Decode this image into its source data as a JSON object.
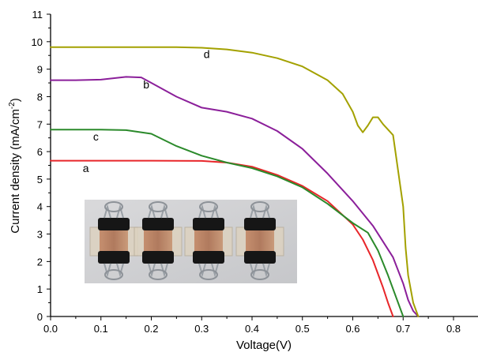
{
  "chart_data": {
    "type": "line",
    "title": "",
    "xlabel": "Voltage(V)",
    "ylabel": "Current density (mA/cm",
    "ylabel_sup": "-2",
    "ylabel_close": ")",
    "xlim": [
      0.0,
      0.85
    ],
    "ylim": [
      0,
      11
    ],
    "xticks": [
      "0.0",
      "0.1",
      "0.2",
      "0.3",
      "0.4",
      "0.5",
      "0.6",
      "0.7",
      "0.8"
    ],
    "yticks": [
      "0",
      "1",
      "2",
      "3",
      "4",
      "5",
      "6",
      "7",
      "8",
      "9",
      "10",
      "11"
    ],
    "grid": false,
    "series": [
      {
        "name": "a",
        "color": "#e8262a",
        "x": [
          0.0,
          0.1,
          0.2,
          0.3,
          0.35,
          0.4,
          0.45,
          0.5,
          0.55,
          0.6,
          0.62,
          0.64,
          0.66,
          0.67,
          0.68
        ],
        "y": [
          5.67,
          5.67,
          5.67,
          5.66,
          5.6,
          5.45,
          5.15,
          4.75,
          4.2,
          3.35,
          2.8,
          2.05,
          1.05,
          0.5,
          0.0
        ]
      },
      {
        "name": "b",
        "color": "#8b1f9a",
        "x": [
          0.0,
          0.05,
          0.1,
          0.15,
          0.18,
          0.2,
          0.25,
          0.3,
          0.35,
          0.4,
          0.45,
          0.5,
          0.55,
          0.6,
          0.64,
          0.68,
          0.7,
          0.71,
          0.72,
          0.73
        ],
        "y": [
          8.6,
          8.6,
          8.62,
          8.72,
          8.7,
          8.5,
          8.0,
          7.6,
          7.45,
          7.2,
          6.75,
          6.1,
          5.2,
          4.2,
          3.3,
          2.15,
          1.2,
          0.6,
          0.2,
          0.0
        ]
      },
      {
        "name": "c",
        "color": "#2b8a2b",
        "x": [
          0.0,
          0.1,
          0.15,
          0.2,
          0.25,
          0.3,
          0.35,
          0.4,
          0.45,
          0.5,
          0.55,
          0.6,
          0.63,
          0.65,
          0.67,
          0.69,
          0.7
        ],
        "y": [
          6.8,
          6.8,
          6.78,
          6.65,
          6.2,
          5.85,
          5.6,
          5.4,
          5.1,
          4.7,
          4.1,
          3.4,
          3.05,
          2.4,
          1.5,
          0.5,
          0.0
        ]
      },
      {
        "name": "d",
        "color": "#a3a100",
        "x": [
          0.0,
          0.1,
          0.2,
          0.25,
          0.3,
          0.35,
          0.4,
          0.45,
          0.5,
          0.55,
          0.58,
          0.6,
          0.61,
          0.62,
          0.63,
          0.64,
          0.65,
          0.66,
          0.68,
          0.7,
          0.705,
          0.71,
          0.72,
          0.73
        ],
        "y": [
          9.8,
          9.8,
          9.8,
          9.8,
          9.78,
          9.72,
          9.6,
          9.4,
          9.1,
          8.6,
          8.1,
          7.45,
          6.95,
          6.7,
          6.95,
          7.25,
          7.25,
          7.0,
          6.6,
          4.0,
          2.5,
          1.5,
          0.5,
          0.0
        ]
      }
    ],
    "annotations": [
      {
        "text": "a",
        "x": 0.07,
        "y": 5.25
      },
      {
        "text": "b",
        "x": 0.19,
        "y": 8.3
      },
      {
        "text": "c",
        "x": 0.09,
        "y": 6.4
      },
      {
        "text": "d",
        "x": 0.31,
        "y": 9.4
      }
    ]
  }
}
